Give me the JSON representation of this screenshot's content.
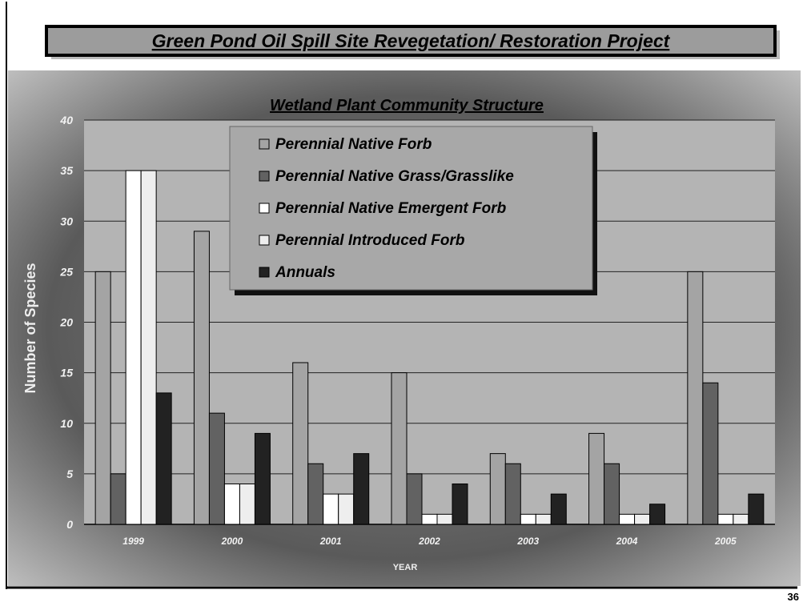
{
  "header": {
    "title": "Green Pond Oil Spill Site Revegetation/ Restoration Project",
    "page_number": "36"
  },
  "chart_data": {
    "type": "bar",
    "title": "Wetland Plant Community Structure",
    "x_label": "YEAR",
    "y_label": "Number of Species",
    "categories": [
      "1999",
      "2000",
      "2001",
      "2002",
      "2003",
      "2004",
      "2005"
    ],
    "series": [
      {
        "name": "Perennial Native Forb",
        "color": "#a4a4a4",
        "values": [
          25,
          29,
          16,
          15,
          7,
          9,
          25
        ]
      },
      {
        "name": "Perennial Native Grass/Grasslike",
        "color": "#626262",
        "values": [
          5,
          11,
          6,
          5,
          6,
          6,
          14
        ]
      },
      {
        "name": "Perennial Native Emergent Forb",
        "color": "#ffffff",
        "values": [
          35,
          4,
          3,
          1,
          1,
          1,
          1
        ]
      },
      {
        "name": "Perennial Introduced Forb",
        "color": "#eeeeee",
        "values": [
          35,
          4,
          3,
          1,
          1,
          1,
          1
        ]
      },
      {
        "name": "Annuals",
        "color": "#222222",
        "values": [
          13,
          9,
          7,
          4,
          3,
          2,
          3
        ]
      }
    ],
    "ylim": [
      0,
      40
    ],
    "yticks": [
      0,
      5,
      10,
      15,
      20,
      25,
      30,
      35,
      40
    ],
    "grid": true
  }
}
